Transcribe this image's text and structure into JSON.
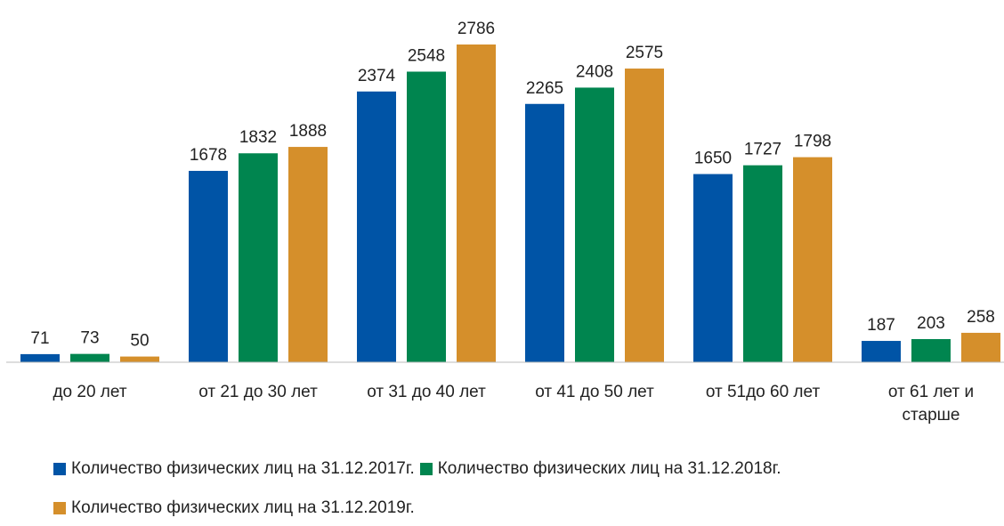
{
  "chart_data": {
    "type": "bar",
    "categories": [
      "до 20 лет",
      "от 21 до 30 лет",
      "от 31 до 40 лет",
      "от 41 до 50 лет",
      "от 51до 60 лет",
      "от 61 лет и\nстарше"
    ],
    "series": [
      {
        "name": "Количество физических лиц на 31.12.2017г.",
        "color": "#0054a6",
        "values": [
          71,
          1678,
          2374,
          2265,
          1650,
          187
        ]
      },
      {
        "name": "Количество физических лиц на 31.12.2018г.",
        "color": "#00854f",
        "values": [
          73,
          1832,
          2548,
          2408,
          1727,
          203
        ]
      },
      {
        "name": "Количество физических лиц на 31.12.2019г.",
        "color": "#d58f2b",
        "values": [
          50,
          1888,
          2786,
          2575,
          1798,
          258
        ]
      }
    ]
  }
}
